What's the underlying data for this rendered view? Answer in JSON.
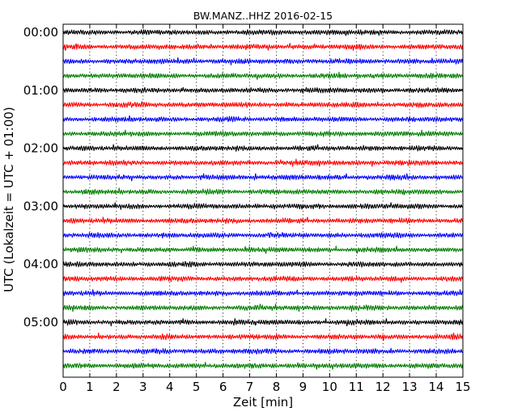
{
  "chart_data": {
    "type": "line",
    "title": "BW.MANZ..HHZ 2016-02-15",
    "xlabel": "Zeit  [min]",
    "ylabel": "UTC (Lokalzeit = UTC + 01:00)",
    "xlim": [
      0,
      15
    ],
    "xticks": [
      "0",
      "1",
      "2",
      "3",
      "4",
      "5",
      "6",
      "7",
      "8",
      "9",
      "10",
      "11",
      "12",
      "13",
      "14",
      "15"
    ],
    "yticks": [
      "00:00",
      "01:00",
      "02:00",
      "03:00",
      "04:00",
      "05:00"
    ],
    "grid": "vertical dotted",
    "colors": [
      "#000000",
      "#ff0000",
      "#0000ff",
      "#007f00"
    ],
    "traces": [
      {
        "start": "00:00"
      },
      {
        "start": "00:15"
      },
      {
        "start": "00:30"
      },
      {
        "start": "00:45"
      },
      {
        "start": "01:00"
      },
      {
        "start": "01:15"
      },
      {
        "start": "01:30"
      },
      {
        "start": "01:45"
      },
      {
        "start": "02:00"
      },
      {
        "start": "02:15"
      },
      {
        "start": "02:30"
      },
      {
        "start": "02:45"
      },
      {
        "start": "03:00"
      },
      {
        "start": "03:15"
      },
      {
        "start": "03:30"
      },
      {
        "start": "03:45"
      },
      {
        "start": "04:00"
      },
      {
        "start": "04:15"
      },
      {
        "start": "04:30"
      },
      {
        "start": "04:45"
      },
      {
        "start": "05:00"
      },
      {
        "start": "05:15"
      },
      {
        "start": "05:30"
      },
      {
        "start": "05:45"
      }
    ]
  }
}
